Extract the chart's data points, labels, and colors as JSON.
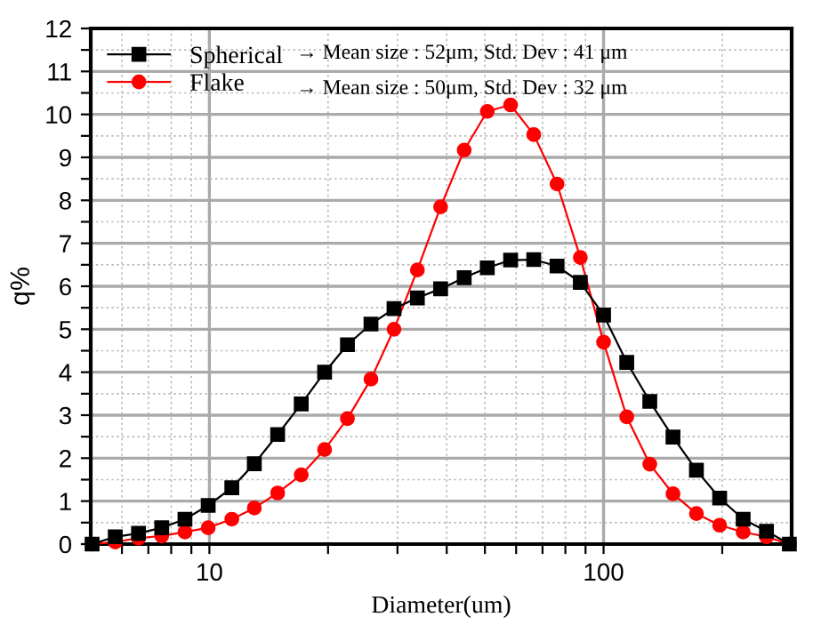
{
  "chart_data": {
    "type": "line",
    "xlabel": "Diameter(um)",
    "ylabel": "q%",
    "x": [
      5.04,
      5.77,
      6.61,
      7.57,
      8.67,
      9.93,
      11.4,
      13.0,
      14.9,
      17.1,
      19.6,
      22.4,
      25.7,
      29.4,
      33.7,
      38.6,
      44.3,
      50.7,
      58.1,
      66.5,
      76.2,
      87.3,
      100,
      114.5,
      131,
      150,
      172,
      197,
      226,
      259,
      296
    ],
    "series": [
      {
        "name": "Spherical",
        "color": "#000000",
        "marker": "square",
        "values": [
          0,
          0.17,
          0.25,
          0.38,
          0.58,
          0.9,
          1.31,
          1.87,
          2.55,
          3.26,
          4.0,
          4.64,
          5.12,
          5.48,
          5.73,
          5.94,
          6.2,
          6.43,
          6.61,
          6.62,
          6.47,
          6.09,
          5.33,
          4.23,
          3.32,
          2.49,
          1.72,
          1.07,
          0.58,
          0.3,
          0
        ]
      },
      {
        "name": "Flake",
        "color": "#ff0000",
        "marker": "circle",
        "values": [
          0,
          0.05,
          0.14,
          0.19,
          0.28,
          0.38,
          0.58,
          0.84,
          1.19,
          1.61,
          2.2,
          2.92,
          3.84,
          5.0,
          6.38,
          7.85,
          9.17,
          10.07,
          10.22,
          9.53,
          8.38,
          6.67,
          4.7,
          2.96,
          1.86,
          1.17,
          0.71,
          0.44,
          0.28,
          0.17,
          0
        ]
      }
    ],
    "annotations": [
      "→ Mean size : 52μm, Std. Dev : 41 μm",
      "→ Mean size : 50μm, Std. Dev : 32 μm"
    ],
    "log": "x",
    "xlim": [
      5,
      300
    ],
    "xticks": [
      {
        "value": 6,
        "label": null
      },
      {
        "value": 7,
        "label": null
      },
      {
        "value": 8,
        "label": null
      },
      {
        "value": 9,
        "label": null
      },
      10,
      {
        "value": 20,
        "label": null
      },
      {
        "value": 30,
        "label": null
      },
      {
        "value": 40,
        "label": null
      },
      {
        "value": 50,
        "label": null
      },
      {
        "value": 60,
        "label": null
      },
      {
        "value": 70,
        "label": null
      },
      {
        "value": 80,
        "label": null
      },
      {
        "value": 90,
        "label": null
      },
      100,
      {
        "value": 200,
        "label": null
      }
    ],
    "ylim": [
      0,
      12
    ],
    "yticks": [
      0,
      {
        "value": 0.5,
        "label": null
      },
      1,
      {
        "value": 1.5,
        "label": null
      },
      2,
      {
        "value": 2.5,
        "label": null
      },
      3,
      {
        "value": 3.5,
        "label": null
      },
      4,
      {
        "value": 4.5,
        "label": null
      },
      5,
      {
        "value": 5.5,
        "label": null
      },
      6,
      {
        "value": 6.5,
        "label": null
      },
      7,
      {
        "value": 7.5,
        "label": null
      },
      8,
      {
        "value": 8.5,
        "label": null
      },
      9,
      {
        "value": 9.5,
        "label": null
      },
      10,
      {
        "value": 10.5,
        "label": null
      },
      11,
      {
        "value": 11.5,
        "label": null
      },
      12
    ],
    "grid": true,
    "legend": "top left",
    "line_style": "solid"
  }
}
